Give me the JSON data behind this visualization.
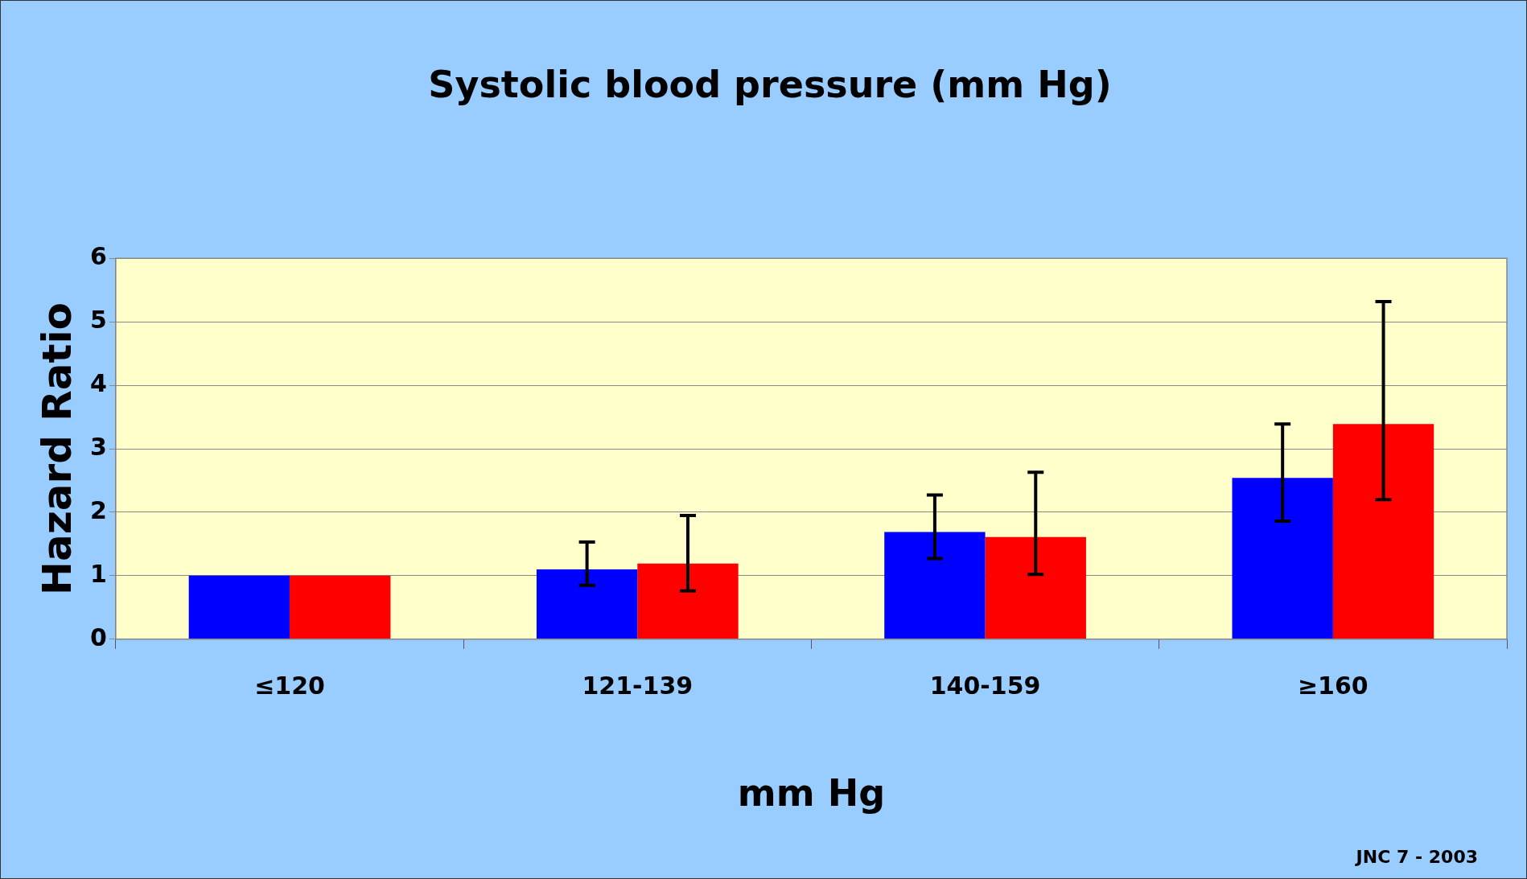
{
  "chart_data": {
    "type": "bar",
    "title": "Systolic blood pressure (mm Hg)",
    "xlabel": "mm Hg",
    "ylabel": "Hazard Ratio",
    "categories": [
      "≤120",
      "121-139",
      "140-159",
      "≥160"
    ],
    "series": [
      {
        "color": "#0000ff",
        "values": [
          1,
          1.1,
          1.69,
          2.54
        ],
        "errors": [
          null,
          [
            0.85,
            1.53
          ],
          [
            1.27,
            2.27
          ],
          [
            1.86,
            3.39
          ]
        ]
      },
      {
        "color": "#ff0000",
        "values": [
          1,
          1.19,
          1.61,
          3.39
        ],
        "errors": [
          null,
          [
            0.76,
            1.95
          ],
          [
            1.02,
            2.63
          ],
          [
            2.2,
            5.32
          ]
        ]
      }
    ],
    "ylim": [
      0,
      6
    ],
    "yticks": [
      0,
      1,
      2,
      3,
      4,
      5,
      6
    ],
    "grid": "y",
    "legend": false,
    "annotations": [
      "JNC 7 - 2003"
    ]
  }
}
